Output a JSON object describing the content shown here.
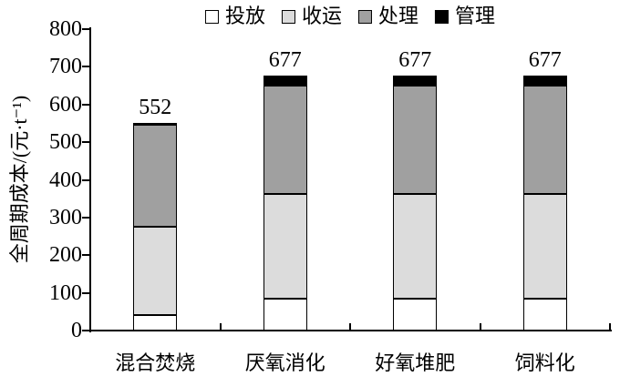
{
  "figure": {
    "background": "#ffffff",
    "axis_color": "#000000"
  },
  "chart_data": {
    "type": "bar",
    "stacked": true,
    "title": "",
    "categories": [
      "混合焚烧",
      "厌氧消化",
      "好氧堆肥",
      "饲料化"
    ],
    "series": [
      {
        "name": "投放",
        "color": "#ffffff",
        "values": [
          40,
          85,
          85,
          85
        ]
      },
      {
        "name": "收运",
        "color": "#dcdcdc",
        "values": [
          235,
          277,
          277,
          277
        ]
      },
      {
        "name": "处理",
        "color": "#a0a0a0",
        "values": [
          272,
          288,
          288,
          288
        ]
      },
      {
        "name": "管理",
        "color": "#000000",
        "values": [
          5,
          27,
          27,
          27
        ]
      }
    ],
    "bar_total_labels": [
      "552",
      "677",
      "677",
      "677"
    ],
    "xlabel": "",
    "ylabel": "全周期成本/(元·t⁻¹)",
    "ylim": [
      0,
      800
    ],
    "ytick_step": 100,
    "yticks": [
      0,
      100,
      200,
      300,
      400,
      500,
      600,
      700,
      800
    ],
    "grid": false,
    "legend_position": "top"
  }
}
